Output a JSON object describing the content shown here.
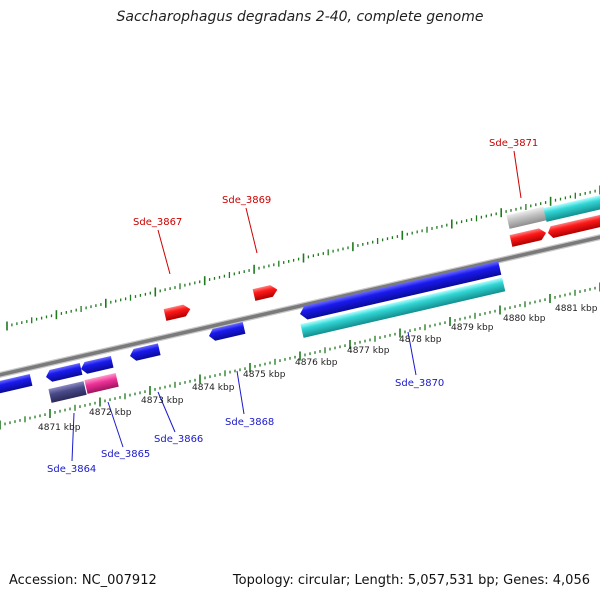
{
  "title": "Saccharophagus degradans 2-40, complete genome",
  "footer": {
    "accession": "Accession: NC_007912",
    "summary": "Topology: circular; Length: 5,057,531 bp; Genes: 4,056"
  },
  "colors": {
    "backbone": "#808080",
    "tick": "#1f7a1f",
    "label_top": "#cc0000",
    "label_bottom": "#1a1acc",
    "kbp_label": "#222222",
    "red": "#ff1a1a",
    "blue": "#1a1aee",
    "cyan": "#22cccc",
    "grey": "#c4c4c4",
    "purple": "#4a4a88",
    "pink": "#ee3399"
  },
  "kbp_labels": [
    "4871 kbp",
    "4872 kbp",
    "4873 kbp",
    "4874 kbp",
    "4875 kbp",
    "4876 kbp",
    "4877 kbp",
    "4878 kbp",
    "4879 kbp",
    "4880 kbp",
    "4881 kbp"
  ],
  "gene_labels": {
    "top": [
      "Sde_3867",
      "Sde_3869",
      "Sde_3871"
    ],
    "bottom": [
      "Sde_3864",
      "Sde_3865",
      "Sde_3866",
      "Sde_3868",
      "Sde_3870"
    ]
  }
}
